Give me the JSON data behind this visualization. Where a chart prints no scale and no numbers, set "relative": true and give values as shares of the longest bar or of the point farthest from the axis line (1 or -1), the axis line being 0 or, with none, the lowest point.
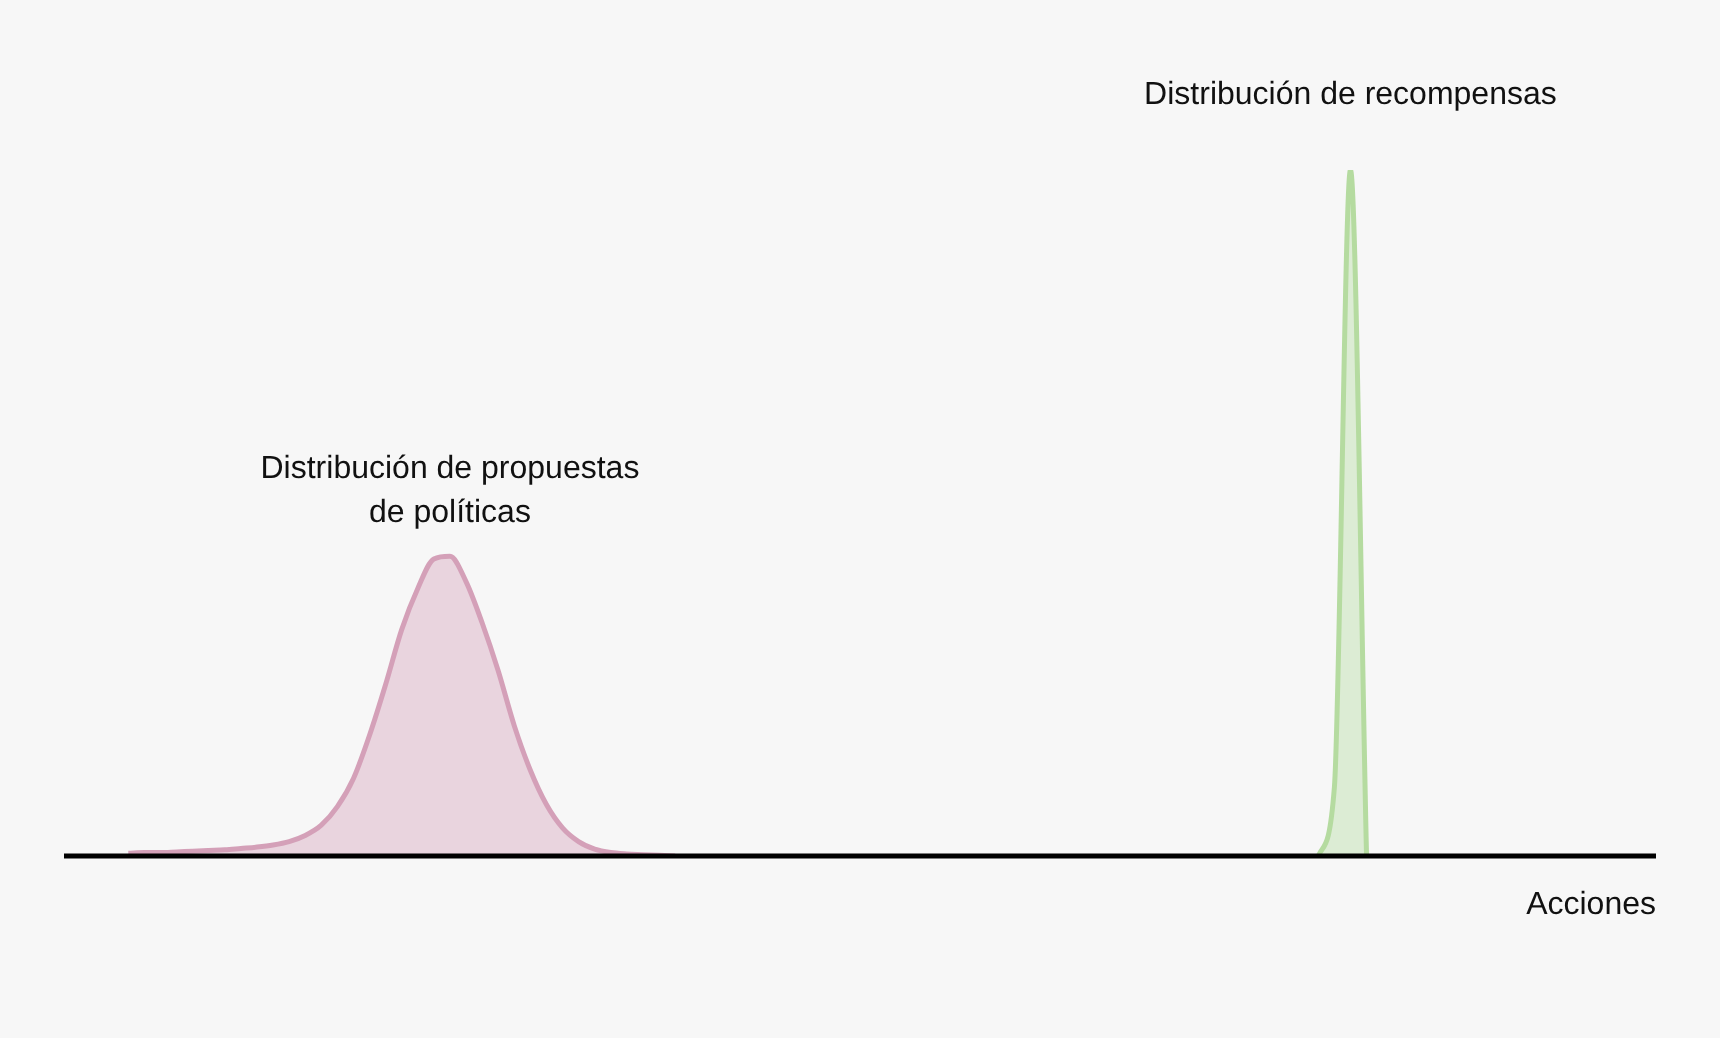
{
  "chart_data": {
    "type": "area",
    "relative": true,
    "xlabel": "Acciones",
    "annotations": [
      "Distribución de propuestas\nde políticas",
      "Distribución de recompensas"
    ],
    "categories": [
      null,
      null,
      null,
      null,
      null,
      null,
      null,
      null,
      null,
      null,
      null,
      null,
      null,
      null,
      null,
      null,
      null,
      null,
      null,
      null,
      null,
      null,
      null,
      null,
      null,
      null,
      null,
      null,
      null,
      null,
      null,
      null,
      null,
      null,
      null,
      null,
      null,
      null,
      null,
      null,
      null,
      null,
      null,
      null,
      null,
      null,
      null,
      null,
      null,
      null,
      null,
      null,
      null,
      null,
      null,
      null,
      null,
      null,
      null,
      null,
      null,
      null,
      null,
      null,
      null,
      null,
      null,
      null,
      null,
      null,
      null,
      null,
      null,
      null,
      null,
      null,
      null,
      null,
      null,
      null,
      null,
      null,
      null,
      null,
      null,
      null,
      null,
      null,
      null,
      null,
      null,
      null,
      null,
      null,
      null,
      null,
      null,
      null,
      null,
      null
    ],
    "series": [
      {
        "color": "#d4a0b8",
        "values": [
          null,
          null,
          null,
          null,
          0.004,
          0.005,
          0.005,
          0.006,
          0.007,
          0.008,
          0.009,
          0.011,
          0.013,
          0.016,
          0.021,
          0.03,
          0.045,
          0.072,
          0.113,
          0.176,
          0.25,
          0.33,
          0.39,
          0.433,
          0.437,
          0.4,
          0.34,
          0.27,
          0.19,
          0.125,
          0.075,
          0.041,
          0.021,
          0.01,
          0.005,
          0.003,
          0.002,
          0.001,
          0,
          null,
          null,
          null,
          null,
          null,
          null,
          null,
          null,
          null,
          null,
          null,
          null,
          null,
          null,
          null,
          null,
          null,
          null,
          null,
          null,
          null,
          null,
          null,
          null,
          null,
          null,
          null,
          null,
          null,
          null,
          null,
          null,
          null,
          null,
          null,
          null,
          null,
          null,
          null,
          null,
          null,
          null,
          null,
          null,
          null,
          null,
          null,
          null,
          null,
          null,
          null,
          null,
          null,
          null,
          null,
          null,
          null,
          null,
          null,
          null,
          null
        ]
      },
      {
        "color": "#b5dba0",
        "values": [
          null,
          null,
          null,
          null,
          null,
          null,
          null,
          null,
          null,
          null,
          null,
          null,
          null,
          null,
          null,
          null,
          null,
          null,
          null,
          null,
          null,
          null,
          null,
          null,
          null,
          null,
          null,
          null,
          null,
          null,
          null,
          null,
          null,
          null,
          null,
          null,
          null,
          null,
          null,
          null,
          null,
          null,
          null,
          null,
          null,
          null,
          null,
          null,
          null,
          null,
          null,
          null,
          null,
          null,
          null,
          null,
          null,
          null,
          null,
          null,
          null,
          null,
          null,
          null,
          null,
          null,
          null,
          null,
          null,
          null,
          null,
          null,
          null,
          null,
          null,
          null,
          null,
          null,
          0,
          0.1,
          1,
          0,
          null,
          null,
          null,
          null,
          null,
          null,
          null,
          null,
          null,
          null,
          null,
          null,
          null,
          null,
          null,
          null,
          null,
          null
        ]
      }
    ]
  }
}
